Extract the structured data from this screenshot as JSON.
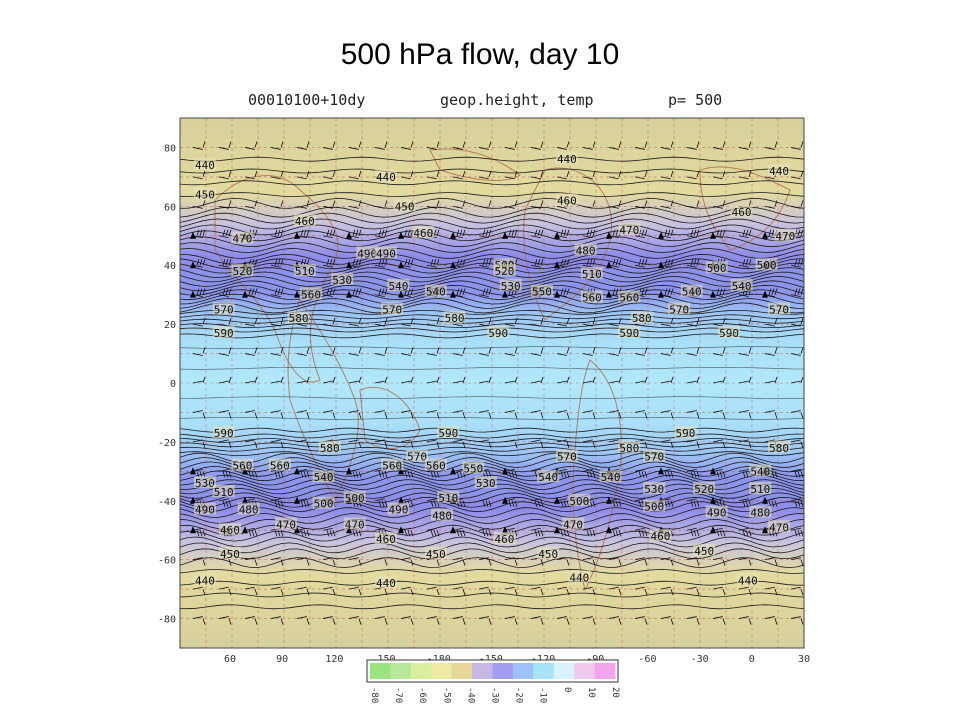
{
  "slide": {
    "title": "500 hPa flow, day 10"
  },
  "header": {
    "date": "00010100+10dy",
    "field": "geop.height, temp",
    "level": "p= 500"
  },
  "map": {
    "lat_labels": [
      "80",
      "60",
      "40",
      "20",
      "0",
      "-20",
      "-40",
      "-60",
      "-80"
    ],
    "lat_values": [
      80,
      60,
      40,
      20,
      0,
      -20,
      -40,
      -60,
      -80
    ],
    "lon_labels": [
      "60",
      "90",
      "120",
      "150",
      "-180",
      "-150",
      "-120",
      "-90",
      "-60",
      "-30",
      "0",
      "30"
    ],
    "contour_levels": [
      440,
      450,
      460,
      470,
      480,
      490,
      500,
      510,
      520,
      530,
      540,
      550,
      560,
      570,
      580,
      590
    ],
    "contour_colors": {
      "line": "#1a1a1a",
      "label": "#111111",
      "coast": "#b07050",
      "grid": "#c05050"
    },
    "height_labels": [
      {
        "text": "440",
        "lon": 0.04,
        "lat": 74
      },
      {
        "text": "440",
        "lon": 0.33,
        "lat": 70
      },
      {
        "text": "440",
        "lon": 0.62,
        "lat": 76
      },
      {
        "text": "440",
        "lon": 0.96,
        "lat": 72
      },
      {
        "text": "450",
        "lon": 0.04,
        "lat": 64
      },
      {
        "text": "450",
        "lon": 0.36,
        "lat": 60
      },
      {
        "text": "460",
        "lon": 0.62,
        "lat": 62
      },
      {
        "text": "460",
        "lon": 0.9,
        "lat": 58
      },
      {
        "text": "460",
        "lon": 0.2,
        "lat": 55
      },
      {
        "text": "460",
        "lon": 0.39,
        "lat": 51
      },
      {
        "text": "470",
        "lon": 0.72,
        "lat": 52
      },
      {
        "text": "470",
        "lon": 0.97,
        "lat": 50
      },
      {
        "text": "470",
        "lon": 0.1,
        "lat": 49
      },
      {
        "text": "480",
        "lon": 0.65,
        "lat": 45
      },
      {
        "text": "490",
        "lon": 0.3,
        "lat": 44
      },
      {
        "text": "490",
        "lon": 0.33,
        "lat": 44
      },
      {
        "text": "500",
        "lon": 0.52,
        "lat": 40
      },
      {
        "text": "500",
        "lon": 0.86,
        "lat": 39
      },
      {
        "text": "500",
        "lon": 0.94,
        "lat": 40
      },
      {
        "text": "510",
        "lon": 0.2,
        "lat": 38
      },
      {
        "text": "510",
        "lon": 0.66,
        "lat": 37
      },
      {
        "text": "520",
        "lon": 0.1,
        "lat": 38
      },
      {
        "text": "520",
        "lon": 0.52,
        "lat": 38
      },
      {
        "text": "530",
        "lon": 0.26,
        "lat": 35
      },
      {
        "text": "530",
        "lon": 0.53,
        "lat": 33
      },
      {
        "text": "540",
        "lon": 0.35,
        "lat": 33
      },
      {
        "text": "540",
        "lon": 0.41,
        "lat": 31
      },
      {
        "text": "540",
        "lon": 0.82,
        "lat": 31
      },
      {
        "text": "540",
        "lon": 0.9,
        "lat": 33
      },
      {
        "text": "550",
        "lon": 0.58,
        "lat": 31
      },
      {
        "text": "560",
        "lon": 0.21,
        "lat": 30
      },
      {
        "text": "560",
        "lon": 0.66,
        "lat": 29
      },
      {
        "text": "560",
        "lon": 0.72,
        "lat": 29
      },
      {
        "text": "570",
        "lon": 0.07,
        "lat": 25
      },
      {
        "text": "570",
        "lon": 0.34,
        "lat": 25
      },
      {
        "text": "570",
        "lon": 0.8,
        "lat": 25
      },
      {
        "text": "570",
        "lon": 0.96,
        "lat": 25
      },
      {
        "text": "580",
        "lon": 0.19,
        "lat": 22
      },
      {
        "text": "580",
        "lon": 0.44,
        "lat": 22
      },
      {
        "text": "580",
        "lon": 0.74,
        "lat": 22
      },
      {
        "text": "590",
        "lon": 0.07,
        "lat": 17
      },
      {
        "text": "590",
        "lon": 0.51,
        "lat": 17
      },
      {
        "text": "590",
        "lon": 0.72,
        "lat": 17
      },
      {
        "text": "590",
        "lon": 0.88,
        "lat": 17
      },
      {
        "text": "590",
        "lon": 0.07,
        "lat": -17
      },
      {
        "text": "590",
        "lon": 0.43,
        "lat": -17
      },
      {
        "text": "590",
        "lon": 0.81,
        "lat": -17
      },
      {
        "text": "580",
        "lon": 0.24,
        "lat": -22
      },
      {
        "text": "580",
        "lon": 0.72,
        "lat": -22
      },
      {
        "text": "580",
        "lon": 0.96,
        "lat": -22
      },
      {
        "text": "570",
        "lon": 0.38,
        "lat": -25
      },
      {
        "text": "570",
        "lon": 0.62,
        "lat": -25
      },
      {
        "text": "570",
        "lon": 0.76,
        "lat": -25
      },
      {
        "text": "560",
        "lon": 0.1,
        "lat": -28
      },
      {
        "text": "560",
        "lon": 0.16,
        "lat": -28
      },
      {
        "text": "560",
        "lon": 0.34,
        "lat": -28
      },
      {
        "text": "560",
        "lon": 0.41,
        "lat": -28
      },
      {
        "text": "540",
        "lon": 0.93,
        "lat": -30
      },
      {
        "text": "540",
        "lon": 0.23,
        "lat": -32
      },
      {
        "text": "540",
        "lon": 0.59,
        "lat": -32
      },
      {
        "text": "540",
        "lon": 0.69,
        "lat": -32
      },
      {
        "text": "550",
        "lon": 0.47,
        "lat": -29
      },
      {
        "text": "530",
        "lon": 0.04,
        "lat": -34
      },
      {
        "text": "530",
        "lon": 0.49,
        "lat": -34
      },
      {
        "text": "530",
        "lon": 0.76,
        "lat": -36
      },
      {
        "text": "520",
        "lon": 0.84,
        "lat": -36
      },
      {
        "text": "510",
        "lon": 0.93,
        "lat": -36
      },
      {
        "text": "510",
        "lon": 0.07,
        "lat": -37
      },
      {
        "text": "500",
        "lon": 0.28,
        "lat": -39
      },
      {
        "text": "510",
        "lon": 0.43,
        "lat": -39
      },
      {
        "text": "500",
        "lon": 0.64,
        "lat": -40
      },
      {
        "text": "500",
        "lon": 0.76,
        "lat": -42
      },
      {
        "text": "490",
        "lon": 0.04,
        "lat": -43
      },
      {
        "text": "480",
        "lon": 0.11,
        "lat": -43
      },
      {
        "text": "490",
        "lon": 0.35,
        "lat": -43
      },
      {
        "text": "480",
        "lon": 0.42,
        "lat": -45
      },
      {
        "text": "490",
        "lon": 0.86,
        "lat": -44
      },
      {
        "text": "480",
        "lon": 0.93,
        "lat": -44
      },
      {
        "text": "500",
        "lon": 0.23,
        "lat": -41
      },
      {
        "text": "460",
        "lon": 0.08,
        "lat": -50
      },
      {
        "text": "470",
        "lon": 0.17,
        "lat": -48
      },
      {
        "text": "470",
        "lon": 0.28,
        "lat": -48
      },
      {
        "text": "470",
        "lon": 0.63,
        "lat": -48
      },
      {
        "text": "470",
        "lon": 0.96,
        "lat": -49
      },
      {
        "text": "460",
        "lon": 0.33,
        "lat": -53
      },
      {
        "text": "460",
        "lon": 0.52,
        "lat": -53
      },
      {
        "text": "460",
        "lon": 0.77,
        "lat": -52
      },
      {
        "text": "450",
        "lon": 0.08,
        "lat": -58
      },
      {
        "text": "450",
        "lon": 0.41,
        "lat": -58
      },
      {
        "text": "450",
        "lon": 0.59,
        "lat": -58
      },
      {
        "text": "450",
        "lon": 0.84,
        "lat": -57
      },
      {
        "text": "440",
        "lon": 0.04,
        "lat": -67
      },
      {
        "text": "440",
        "lon": 0.33,
        "lat": -68
      },
      {
        "text": "440",
        "lon": 0.64,
        "lat": -66
      },
      {
        "text": "440",
        "lon": 0.91,
        "lat": -67
      }
    ]
  },
  "colorbar": {
    "ticks": [
      "-80",
      "-70",
      "-60",
      "-50",
      "-40",
      "-30",
      "-20",
      "-10",
      "0",
      "10",
      "20"
    ],
    "colors": [
      "#9be37f",
      "#b8e89a",
      "#d7ef9f",
      "#eeeaa5",
      "#e8d79a",
      "#c7b7e3",
      "#a29ff0",
      "#9fc2f6",
      "#a6e2f8",
      "#d9f2fb",
      "#f2c9ee",
      "#f1a5ea"
    ]
  }
}
